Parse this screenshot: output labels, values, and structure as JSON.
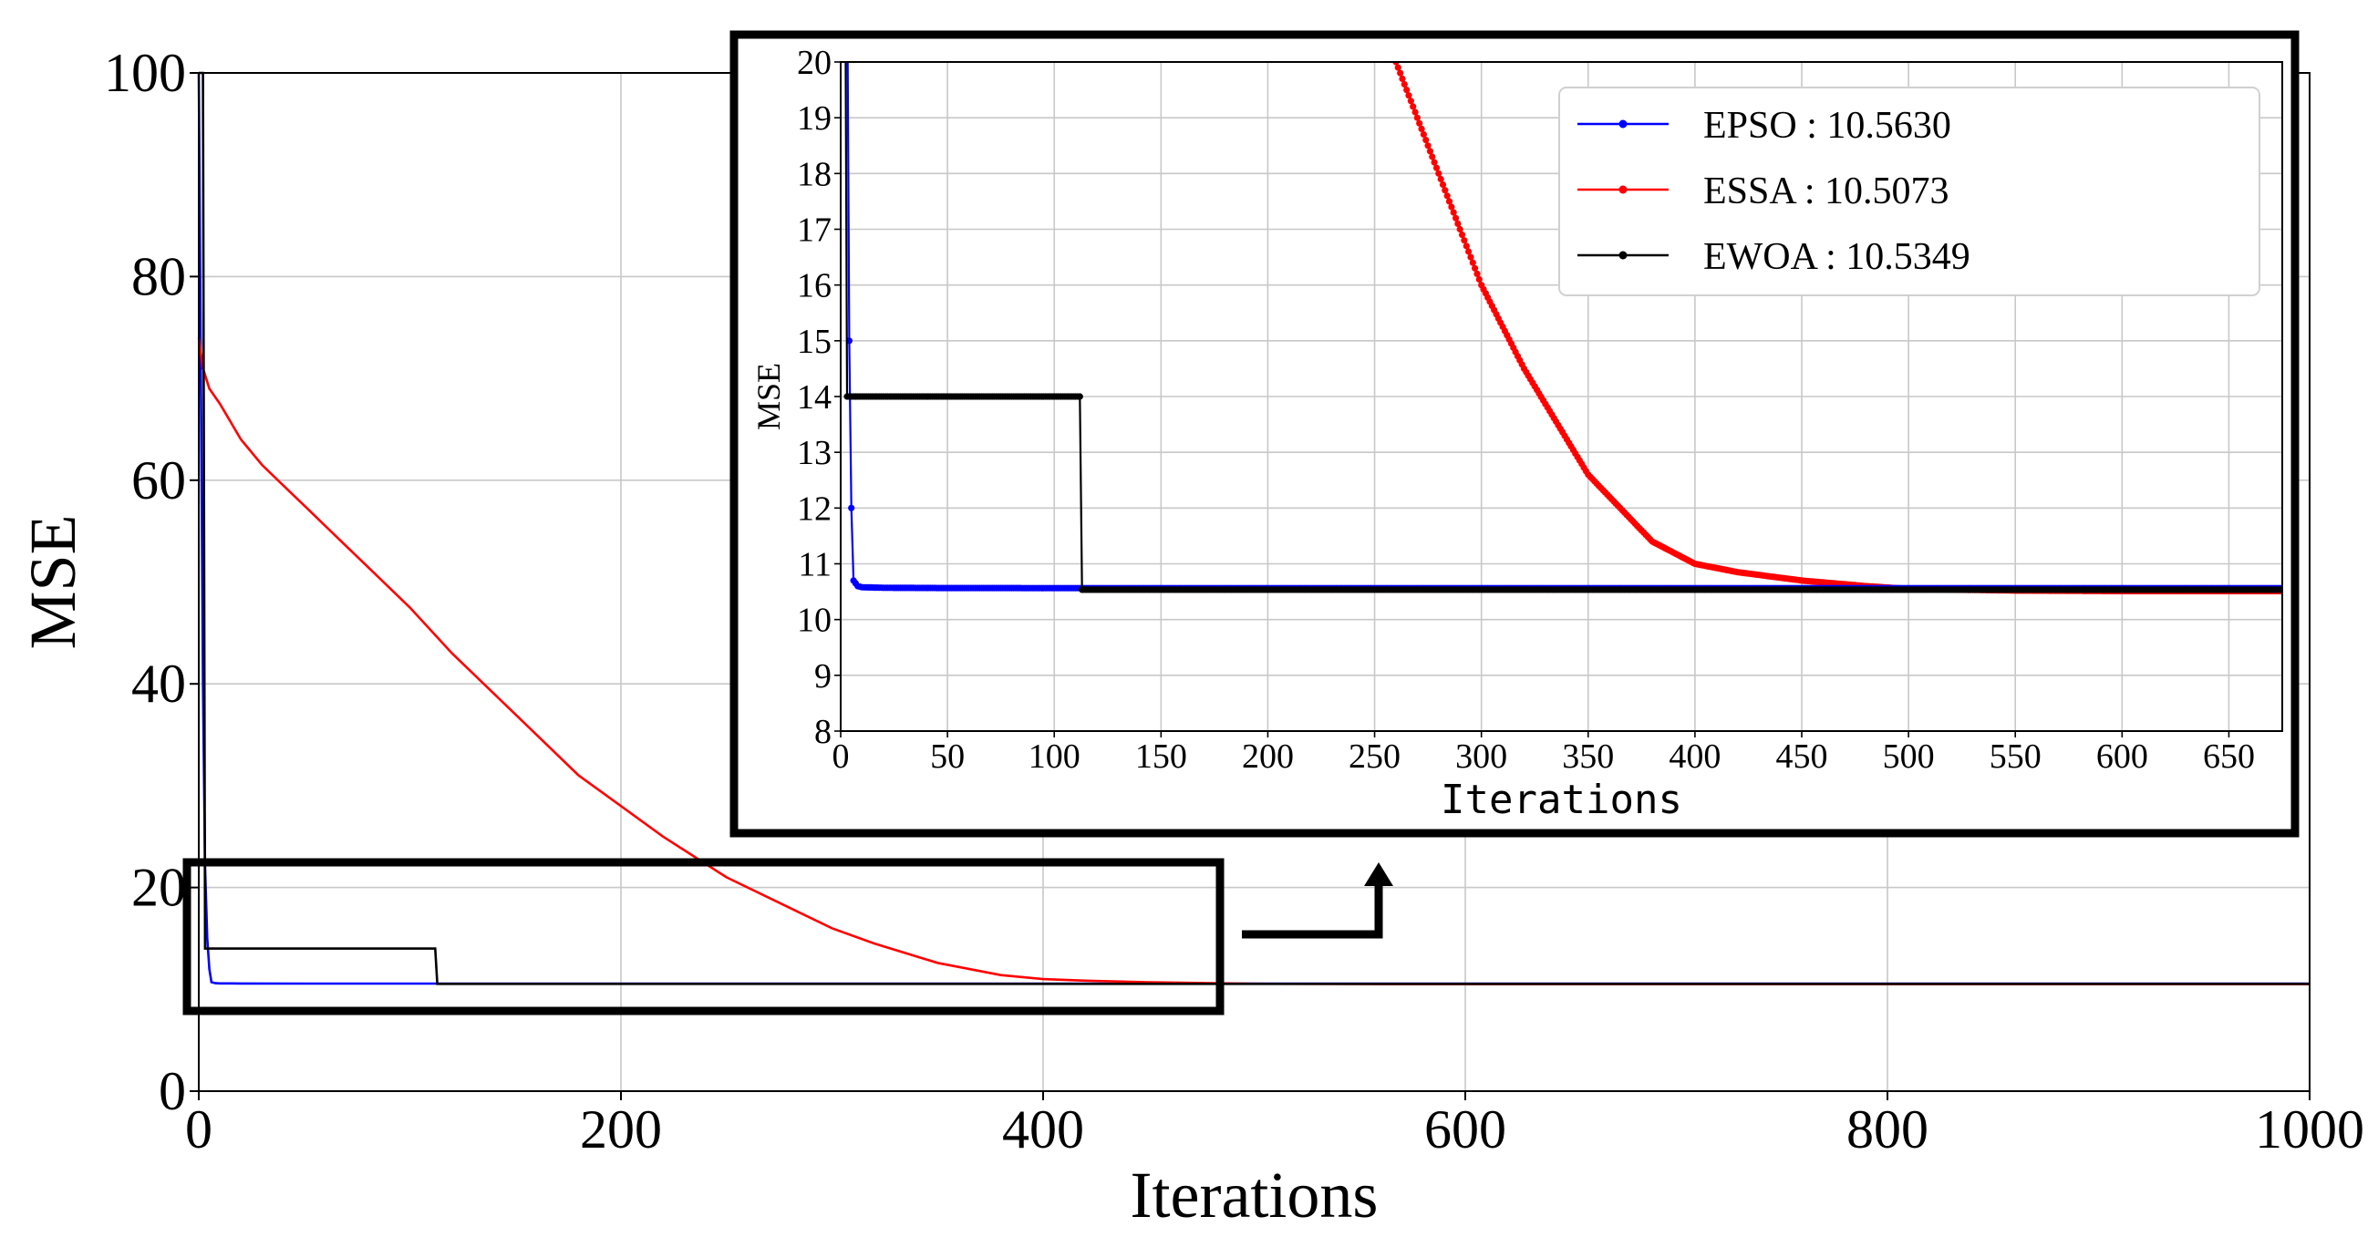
{
  "chart_data": [
    {
      "type": "line",
      "name": "main",
      "title": "",
      "xlabel": "Iterations",
      "ylabel": "MSE",
      "xlim": [
        0,
        1000
      ],
      "ylim": [
        0,
        100
      ],
      "xticks": [
        0,
        200,
        400,
        600,
        800,
        1000
      ],
      "yticks": [
        0,
        20,
        40,
        60,
        80,
        100
      ],
      "grid": true,
      "series": [
        {
          "name": "EPSO",
          "color": "#0000ff",
          "x": [
            0,
            1,
            2,
            3,
            4,
            5,
            6,
            8,
            10,
            20,
            50,
            100,
            115,
            200,
            400,
            600,
            800,
            1000
          ],
          "y": [
            100,
            70,
            40,
            22,
            15,
            12,
            10.7,
            10.6,
            10.58,
            10.57,
            10.565,
            10.564,
            10.5635,
            10.563,
            10.563,
            10.563,
            10.563,
            10.563
          ]
        },
        {
          "name": "ESSA",
          "color": "#ff0000",
          "x": [
            0,
            2,
            5,
            10,
            20,
            30,
            40,
            50,
            60,
            80,
            100,
            120,
            150,
            180,
            200,
            220,
            250,
            280,
            300,
            320,
            350,
            380,
            400,
            420,
            450,
            480,
            500,
            550,
            600,
            800,
            1000
          ],
          "y": [
            74,
            71,
            69,
            67.5,
            64,
            61.5,
            59.5,
            57.5,
            55.5,
            51.5,
            47.5,
            43,
            37,
            31,
            28,
            25,
            21,
            18,
            16,
            14.5,
            12.6,
            11.4,
            11.0,
            10.85,
            10.7,
            10.6,
            10.55,
            10.52,
            10.51,
            10.508,
            10.5073
          ]
        },
        {
          "name": "EWOA",
          "color": "#000000",
          "x": [
            0,
            2,
            3,
            112,
            113,
            200,
            400,
            600,
            800,
            1000
          ],
          "y": [
            100,
            100,
            14.0,
            14.0,
            10.5349,
            10.5349,
            10.5349,
            10.5349,
            10.5349,
            10.5349
          ]
        }
      ]
    },
    {
      "type": "line",
      "name": "inset",
      "title": "",
      "xlabel": "Iterations",
      "ylabel": "MSE",
      "xlim": [
        0,
        675
      ],
      "ylim": [
        8,
        20
      ],
      "xticks": [
        0,
        50,
        100,
        150,
        200,
        250,
        300,
        350,
        400,
        450,
        500,
        550,
        600,
        650
      ],
      "yticks": [
        8,
        9,
        10,
        11,
        12,
        13,
        14,
        15,
        16,
        17,
        18,
        19,
        20
      ],
      "grid": true,
      "legend_position": "top-right",
      "legend": [
        "EPSO : 10.5630",
        "ESSA : 10.5073",
        "EWOA : 10.5349"
      ],
      "marker": "dot"
    }
  ]
}
